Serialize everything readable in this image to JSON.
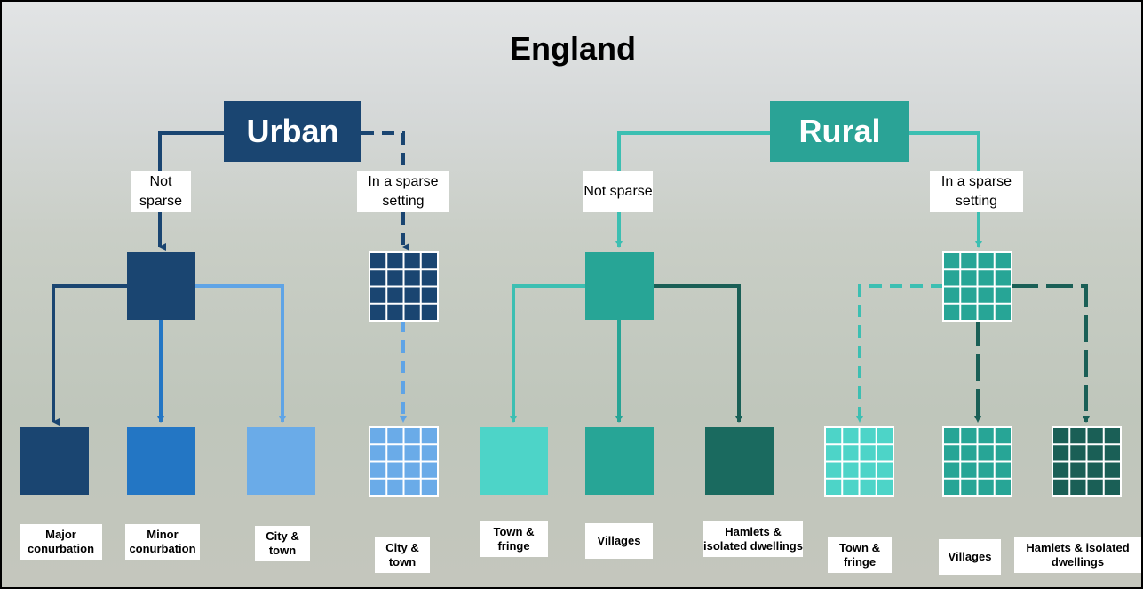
{
  "title": "England",
  "groups": [
    {
      "label": "Urban",
      "branches": [
        {
          "label": "Not sparse",
          "leaves": [
            "Major conurbation",
            "Minor conurbation",
            "City & town"
          ]
        },
        {
          "label": "In a sparse setting",
          "leaves": [
            "City & town"
          ]
        }
      ]
    },
    {
      "label": "Rural",
      "branches": [
        {
          "label": "Not sparse",
          "leaves": [
            "Town & fringe",
            "Villages",
            "Hamlets & isolated dwellings"
          ]
        },
        {
          "label": "In a sparse setting",
          "leaves": [
            "Town & fringe",
            "Villages",
            "Hamlets & isolated dwellings"
          ]
        }
      ]
    }
  ]
}
